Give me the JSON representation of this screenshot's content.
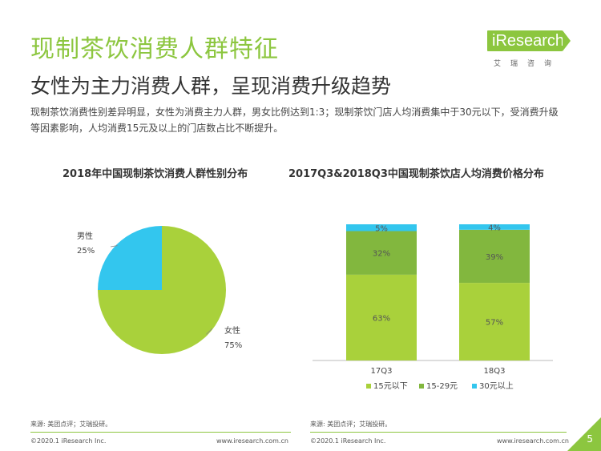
{
  "header": {
    "title": "现制茶饮消费人群特征",
    "subtitle": "女性为主力消费人群，呈现消费升级趋势",
    "summary": "现制茶饮消费性别差异明显，女性为消费主力人群，男女比例达到1:3；现制茶饮门店人均消费集中于30元以下，受消费升级等因素影响，人均消费15元及以上的门店数占比不断提升。"
  },
  "logo": {
    "name": "iResearch",
    "subtitle": "艾瑞咨询"
  },
  "colors": {
    "green_light": "#a9d13b",
    "green_dark": "#82b73e",
    "cyan": "#33c6ee",
    "accent": "#8cc63f"
  },
  "chart_data": [
    {
      "type": "pie",
      "title": "2018年中国现制茶饮消费人群性别分布",
      "slices": [
        {
          "label": "男性",
          "value": 25,
          "display": "25%",
          "color": "#33c6ee"
        },
        {
          "label": "女性",
          "value": 75,
          "display": "75%",
          "color": "#a9d13b"
        }
      ]
    },
    {
      "type": "bar",
      "stacked": true,
      "percent": true,
      "title": "2017Q3&2018Q3中国现制茶饮店人均消费价格分布",
      "categories": [
        "17Q3",
        "18Q3"
      ],
      "series": [
        {
          "name": "15元以下",
          "values": [
            63,
            57
          ],
          "labels": [
            "63%",
            "57%"
          ],
          "color": "#a9d13b"
        },
        {
          "name": "15-29元",
          "values": [
            32,
            39
          ],
          "labels": [
            "32%",
            "39%"
          ],
          "color": "#82b73e"
        },
        {
          "name": "30元以上",
          "values": [
            5,
            4
          ],
          "labels": [
            "5%",
            "4%"
          ],
          "color": "#33c6ee"
        }
      ],
      "legend_position": "bottom"
    }
  ],
  "footer": {
    "left_source": "来源: 美团点评；艾瑞投研。",
    "left_copyright": "©2020.1 iResearch Inc.",
    "left_url": "www.iresearch.com.cn",
    "right_source": "来源: 美团点评；艾瑞投研。",
    "right_copyright": "©2020.1 iResearch Inc.",
    "right_url": "www.iresearch.com.cn",
    "page_number": "5"
  }
}
